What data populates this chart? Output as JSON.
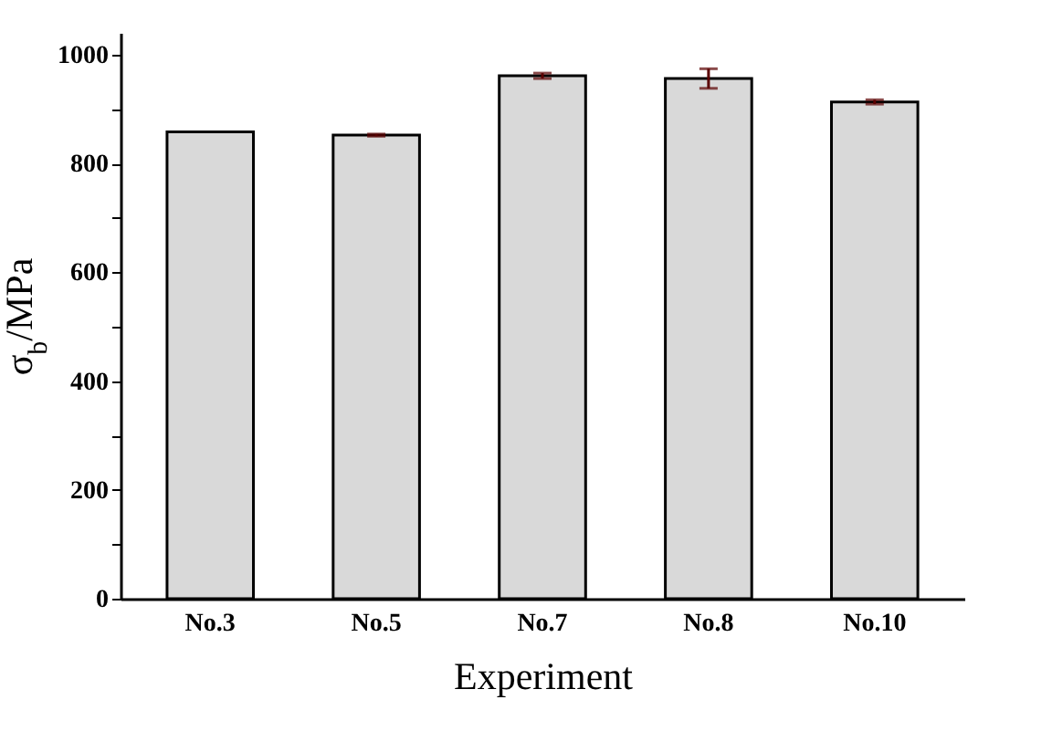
{
  "chart_data": {
    "type": "bar",
    "xlabel": "Experiment",
    "ylabel": "σ$_{b}$/MPa",
    "categories": [
      "No.3",
      "No.5",
      "No.7",
      "No.8",
      "No.10"
    ],
    "values": [
      858,
      852,
      961,
      956,
      913
    ],
    "errors": [
      null,
      2,
      5,
      18,
      4
    ],
    "color": "#d9d9d9",
    "ylim": [
      0,
      1040
    ],
    "yticks": [
      0,
      {
        "value": 100,
        "label": null
      },
      200,
      {
        "value": 300,
        "label": null
      },
      400,
      {
        "value": 500,
        "label": null
      },
      600,
      {
        "value": 700,
        "label": null
      },
      800,
      {
        "value": 900,
        "label": null
      },
      1000
    ],
    "grid": false
  }
}
